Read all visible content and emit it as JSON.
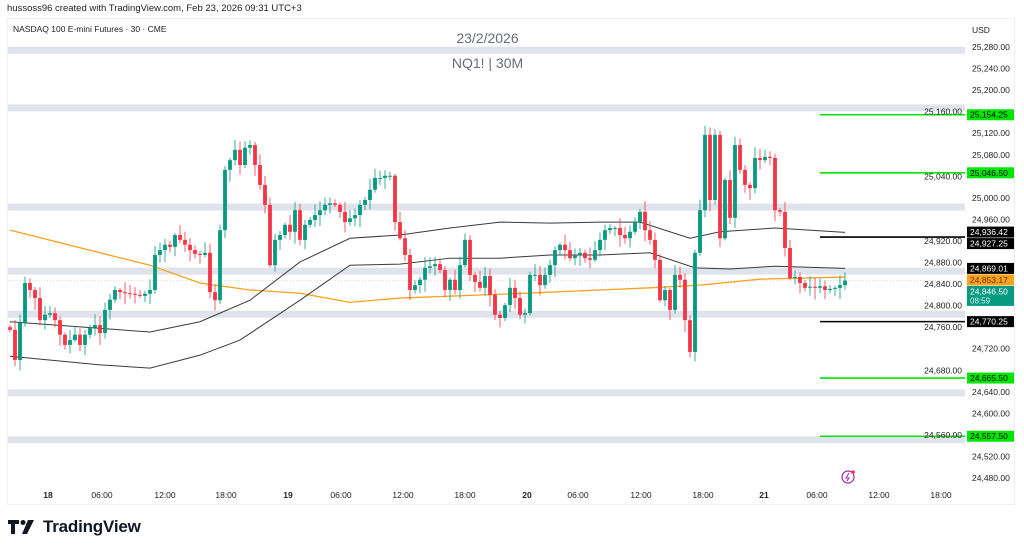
{
  "header": {
    "credit": "hussoss96 created with TradingView.com, Feb 23, 2026 09:31 UTC+3",
    "symbol_title": "NASDAQ 100 E-mini Futures · 30 · CME",
    "watermark_date": "23/2/2026",
    "watermark_symbol": "NQ1! | 30M",
    "currency": "USD"
  },
  "footer": {
    "brand": "TradingView"
  },
  "icons": {
    "alert": "lightning-icon",
    "logo": "tradingview-logo-icon"
  },
  "colors": {
    "up": "#089981",
    "down": "#f23645",
    "ma": "#f7a21b",
    "band": "#3a3a3a",
    "zone": "#e0e3eb",
    "green_level": "#00e600",
    "black_level": "#000000",
    "last_price": "#089981"
  },
  "chart_data": {
    "type": "candlestick",
    "title": "NASDAQ 100 E-mini Futures · 30 · CME",
    "ylabel": "USD",
    "ylim": [
      24480,
      25280
    ],
    "y_ticks": [
      "25,280.00",
      "25,240.00",
      "25,200.00",
      "25,160.00",
      "25,120.00",
      "25,080.00",
      "25,040.00",
      "25,000.00",
      "24,960.00",
      "24,920.00",
      "24,880.00",
      "24,840.00",
      "24,800.00",
      "24,760.00",
      "24,720.00",
      "24,680.00",
      "24,640.00",
      "24,600.00",
      "24,560.00",
      "24,520.00",
      "24,480.00"
    ],
    "x_ticks": [
      {
        "label": "18",
        "bar": 7.6,
        "bold": true
      },
      {
        "label": "06:00",
        "bar": 18.4
      },
      {
        "label": "12:00",
        "bar": 31
      },
      {
        "label": "18:00",
        "bar": 43.2
      },
      {
        "label": "19",
        "bar": 55.6,
        "bold": true
      },
      {
        "label": "06:00",
        "bar": 66.2
      },
      {
        "label": "12:00",
        "bar": 78.6
      },
      {
        "label": "18:00",
        "bar": 91
      },
      {
        "label": "20",
        "bar": 103.4,
        "bold": true
      },
      {
        "label": "06:00",
        "bar": 113.6
      },
      {
        "label": "12:00",
        "bar": 126.2
      },
      {
        "label": "18:00",
        "bar": 138.6
      },
      {
        "label": "21",
        "bar": 150.8,
        "bold": true
      },
      {
        "label": "06:00",
        "bar": 161.4
      },
      {
        "label": "12:00",
        "bar": 173.8
      },
      {
        "label": "18:00",
        "bar": 186.2
      }
    ],
    "first_open": 24760,
    "closes": [
      24755,
      24699,
      24768,
      24842,
      24829,
      24814,
      24773,
      24783,
      24786,
      24773,
      24746,
      24727,
      24736,
      24746,
      24727,
      24746,
      24759,
      24764,
      24749,
      24792,
      24811,
      24829,
      24825,
      24823,
      24822,
      24820,
      24818,
      24822,
      24829,
      24894,
      24903,
      24913,
      24909,
      24931,
      24922,
      24913,
      24903,
      24896,
      24894,
      24898,
      24825,
      24810,
      24940,
      25052,
      25070,
      25089,
      25061,
      25093,
      25098,
      25061,
      25024,
      24987,
      24875,
      24922,
      24931,
      24950,
      24937,
      24977,
      24922,
      24950,
      24959,
      24968,
      24977,
      24987,
      24990,
      24987,
      24974,
      24955,
      24962,
      24968,
      24987,
      24996,
      25015,
      25037,
      25037,
      25041,
      25041,
      24955,
      24925,
      24894,
      24829,
      24838,
      24848,
      24870,
      24873,
      24877,
      24866,
      24829,
      24848,
      24829,
      24875,
      24922,
      24857,
      24844,
      24833,
      24855,
      24820,
      24783,
      24777,
      24801,
      24833,
      24814,
      24783,
      24786,
      24857,
      24857,
      24838,
      24857,
      24875,
      24903,
      24913,
      24903,
      24888,
      24894,
      24898,
      24888,
      24885,
      24903,
      24922,
      24940,
      24944,
      24944,
      24931,
      24925,
      24937,
      24955,
      24974,
      24940,
      24922,
      24885,
      24810,
      24829,
      24792,
      24857,
      24848,
      24773,
      24714,
      24898,
      24977,
      25117,
      24996,
      25117,
      24925,
      25033,
      24963,
      25098,
      25052,
      25024,
      25018,
      25074,
      25070,
      25076,
      25074,
      24977,
      24974,
      24907,
      24851,
      24853,
      24842,
      24833,
      24835,
      24833,
      24836,
      24829,
      24831,
      24833,
      24838,
      24846.5
    ],
    "series": [
      {
        "name": "moving-average-orange",
        "points": [
          [
            0,
            24940
          ],
          [
            18,
            24898
          ],
          [
            28,
            24875
          ],
          [
            38,
            24842
          ],
          [
            48,
            24829
          ],
          [
            58,
            24823
          ],
          [
            68,
            24806
          ],
          [
            78,
            24814
          ],
          [
            98,
            24821
          ],
          [
            118,
            24829
          ],
          [
            128,
            24833
          ],
          [
            138,
            24838
          ],
          [
            150,
            24849
          ],
          [
            167,
            24853
          ]
        ]
      },
      {
        "name": "upper-band",
        "points": [
          [
            0,
            24770
          ],
          [
            28,
            24751
          ],
          [
            38,
            24770
          ],
          [
            48,
            24810
          ],
          [
            58,
            24881
          ],
          [
            68,
            24925
          ],
          [
            78,
            24931
          ],
          [
            88,
            24944
          ],
          [
            98,
            24955
          ],
          [
            108,
            24953
          ],
          [
            118,
            24955
          ],
          [
            126,
            24955
          ],
          [
            136,
            24925
          ],
          [
            142,
            24937
          ],
          [
            153,
            24944
          ],
          [
            167,
            24936
          ]
        ]
      },
      {
        "name": "lower-band",
        "points": [
          [
            0,
            24706
          ],
          [
            18,
            24690
          ],
          [
            28,
            24684
          ],
          [
            38,
            24708
          ],
          [
            46,
            24736
          ],
          [
            58,
            24810
          ],
          [
            68,
            24875
          ],
          [
            78,
            24877
          ],
          [
            88,
            24888
          ],
          [
            98,
            24888
          ],
          [
            108,
            24894
          ],
          [
            118,
            24894
          ],
          [
            128,
            24898
          ],
          [
            137,
            24870
          ],
          [
            144,
            24868
          ],
          [
            153,
            24873
          ],
          [
            167,
            24869
          ]
        ]
      }
    ],
    "zones": [
      25274,
      25167,
      24983,
      24864,
      24784,
      24638,
      24551
    ],
    "levels": [
      {
        "price": 25154.25,
        "label": "25,154.25",
        "color": "#00e600",
        "text": "#000"
      },
      {
        "price": 25046.5,
        "label": "25,046.50",
        "color": "#00e600",
        "text": "#000"
      },
      {
        "price": 24927.25,
        "label": "24,927.25",
        "color": "#000000",
        "text": "#fff"
      },
      {
        "price": 24770.25,
        "label": "24,770.25",
        "color": "#000000",
        "text": "#fff"
      },
      {
        "price": 24665.5,
        "label": "24,665.50",
        "color": "#00e600",
        "text": "#000"
      },
      {
        "price": 24557.5,
        "label": "24,557.50",
        "color": "#00e600",
        "text": "#000"
      }
    ],
    "price_badges": [
      {
        "price": 24936.42,
        "label": "24,936.42",
        "bg": "#000000",
        "fg": "#ffffff"
      },
      {
        "price": 24869.01,
        "label": "24,869.01",
        "bg": "#000000",
        "fg": "#ffffff"
      },
      {
        "price": 24853.17,
        "label": "24,853.17",
        "bg": "#f7a21b",
        "fg": "#7a2a00"
      }
    ],
    "last_price": {
      "price": 24846.5,
      "label": "24,846.50",
      "countdown": "08:59"
    }
  }
}
